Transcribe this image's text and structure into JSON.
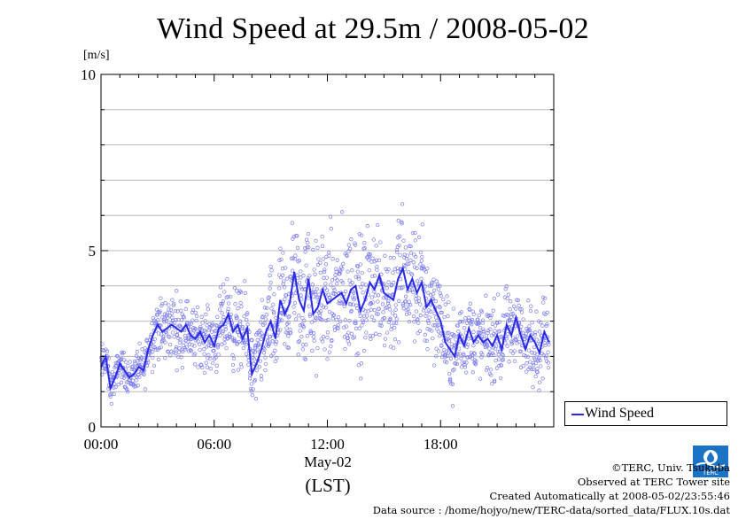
{
  "chart_data": {
    "type": "scatter",
    "title": "Wind Speed at 29.5m / 2008-05-02",
    "ylabel": "[m/s]",
    "xlabel_date": "May-02",
    "xlabel_unit": "(LST)",
    "ylim": [
      0,
      10
    ],
    "xlim_hours": [
      0,
      24
    ],
    "y_ticks": [
      0,
      5,
      10
    ],
    "y_minor_grid": [
      1,
      2,
      3,
      4,
      6,
      7,
      8,
      9
    ],
    "x_ticks": [
      "00:00",
      "06:00",
      "12:00",
      "18:00"
    ],
    "x_tick_hours": [
      0,
      6,
      12,
      18
    ],
    "grid": true,
    "legend": {
      "placement": "right",
      "label": "Wind Speed"
    },
    "series": [
      {
        "name": "Wind Speed",
        "color": "#2a2ae6",
        "scatter_color": "#7a7aee",
        "x_hours": [
          0.0,
          0.25,
          0.5,
          0.75,
          1.0,
          1.25,
          1.5,
          1.75,
          2.0,
          2.25,
          2.5,
          2.75,
          3.0,
          3.25,
          3.5,
          3.75,
          4.0,
          4.25,
          4.5,
          4.75,
          5.0,
          5.25,
          5.5,
          5.75,
          6.0,
          6.25,
          6.5,
          6.75,
          7.0,
          7.25,
          7.5,
          7.75,
          8.0,
          8.25,
          8.5,
          8.75,
          9.0,
          9.25,
          9.5,
          9.75,
          10.0,
          10.25,
          10.5,
          10.75,
          11.0,
          11.25,
          11.5,
          11.75,
          12.0,
          12.25,
          12.5,
          12.75,
          13.0,
          13.25,
          13.5,
          13.75,
          14.0,
          14.25,
          14.5,
          14.75,
          15.0,
          15.25,
          15.5,
          15.75,
          16.0,
          16.25,
          16.5,
          16.75,
          17.0,
          17.25,
          17.5,
          17.75,
          18.0,
          18.25,
          18.5,
          18.75,
          19.0,
          19.25,
          19.5,
          19.75,
          20.0,
          20.25,
          20.5,
          20.75,
          21.0,
          21.25,
          21.5,
          21.75,
          22.0,
          22.25,
          22.5,
          22.75,
          23.0,
          23.25,
          23.5,
          23.75
        ],
        "values": [
          1.7,
          2.0,
          1.1,
          1.4,
          1.8,
          1.6,
          1.4,
          1.5,
          1.7,
          1.6,
          2.2,
          2.6,
          2.9,
          2.7,
          2.8,
          2.9,
          2.8,
          2.7,
          2.9,
          2.6,
          2.5,
          2.7,
          2.4,
          2.6,
          2.3,
          2.8,
          2.9,
          3.2,
          2.7,
          2.9,
          2.5,
          2.8,
          1.5,
          1.8,
          2.2,
          2.7,
          3.0,
          2.5,
          3.6,
          3.2,
          3.5,
          4.4,
          3.6,
          3.3,
          4.2,
          3.2,
          3.4,
          3.9,
          3.5,
          3.6,
          3.7,
          3.8,
          3.5,
          3.9,
          4.0,
          3.3,
          3.6,
          4.1,
          3.9,
          4.3,
          3.8,
          3.7,
          3.6,
          4.2,
          4.5,
          3.9,
          4.2,
          3.8,
          4.1,
          3.4,
          3.6,
          3.3,
          3.0,
          2.4,
          2.2,
          2.0,
          2.6,
          2.3,
          2.8,
          2.4,
          2.6,
          2.4,
          2.5,
          2.3,
          2.6,
          2.2,
          2.9,
          2.6,
          3.1,
          2.6,
          2.2,
          2.6,
          2.4,
          2.1,
          2.7,
          2.4
        ],
        "spread": [
          0.5,
          0.5,
          0.4,
          0.4,
          0.4,
          0.4,
          0.4,
          0.4,
          0.5,
          0.5,
          0.6,
          0.7,
          0.8,
          0.8,
          0.8,
          0.8,
          0.8,
          0.8,
          0.7,
          0.7,
          0.7,
          0.7,
          0.7,
          0.7,
          0.8,
          0.8,
          0.9,
          0.9,
          0.9,
          1.0,
          1.0,
          1.0,
          0.9,
          0.9,
          1.0,
          1.1,
          1.2,
          1.2,
          1.3,
          1.4,
          1.5,
          1.6,
          1.6,
          1.6,
          1.6,
          1.6,
          1.6,
          1.6,
          1.6,
          1.6,
          1.6,
          1.6,
          1.6,
          1.6,
          1.6,
          1.6,
          1.5,
          1.5,
          1.5,
          1.5,
          1.5,
          1.5,
          1.5,
          1.5,
          1.5,
          1.5,
          1.4,
          1.4,
          1.4,
          1.3,
          1.3,
          1.2,
          1.1,
          1.0,
          1.0,
          1.0,
          0.9,
          0.9,
          0.9,
          0.9,
          0.9,
          0.9,
          0.9,
          0.9,
          0.9,
          0.9,
          0.9,
          0.9,
          0.9,
          0.9,
          0.9,
          0.9,
          0.9,
          0.9,
          0.9,
          0.9
        ]
      }
    ]
  },
  "footer": {
    "copyright": "©TERC, Univ. Tsukuba",
    "site": "Observed at TERC Tower site",
    "created": "Created Automatically at 2008-05-02/23:55:46",
    "source": "Data source : /home/hojyo/new/TERC-data/sorted_data/FLUX.10s.dat",
    "logo_text": "TERC"
  }
}
